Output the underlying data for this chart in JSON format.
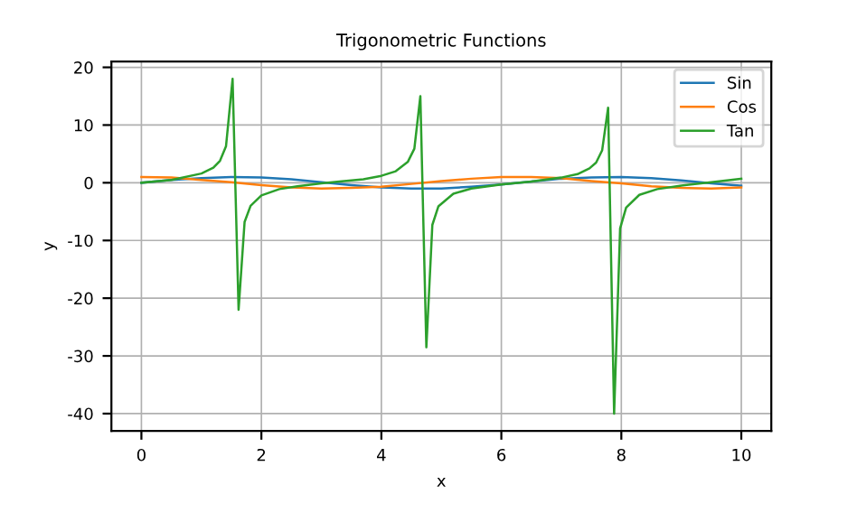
{
  "chart_data": {
    "type": "line",
    "title": "Trigonometric Functions",
    "xlabel": "x",
    "ylabel": "y",
    "series": [
      {
        "name": "Sin",
        "color": "#1f77b4",
        "x": [
          0,
          0.5,
          1,
          1.5,
          2,
          2.5,
          3,
          3.5,
          4,
          4.5,
          5,
          5.5,
          6,
          6.5,
          7,
          7.5,
          8,
          8.5,
          9,
          9.5,
          10
        ],
        "values": [
          0,
          0.5,
          0.8,
          1.0,
          0.9,
          0.6,
          0.1,
          -0.4,
          -0.8,
          -1.0,
          -1.0,
          -0.7,
          -0.3,
          0.2,
          0.7,
          0.9,
          1.0,
          0.8,
          0.4,
          -0.1,
          -0.5
        ]
      },
      {
        "name": "Cos",
        "color": "#ff7f0e",
        "x": [
          0,
          0.5,
          1,
          1.5,
          2,
          2.5,
          3,
          3.5,
          4,
          4.5,
          5,
          5.5,
          6,
          6.5,
          7,
          7.5,
          8,
          8.5,
          9,
          9.5,
          10
        ],
        "values": [
          1,
          0.9,
          0.5,
          0.1,
          -0.4,
          -0.8,
          -1.0,
          -0.9,
          -0.7,
          -0.2,
          0.3,
          0.7,
          1.0,
          1.0,
          0.8,
          0.3,
          -0.1,
          -0.6,
          -0.9,
          -1.0,
          -0.8
        ]
      },
      {
        "name": "Tan",
        "color": "#2ca02c",
        "x": [
          0,
          0.5,
          1,
          1.2,
          1.31,
          1.41,
          1.52,
          1.62,
          1.72,
          1.82,
          2,
          2.3,
          2.6,
          3,
          3.3,
          3.7,
          4,
          4.24,
          4.44,
          4.55,
          4.65,
          4.75,
          4.85,
          4.95,
          5.2,
          5.5,
          6,
          6.5,
          7,
          7.27,
          7.47,
          7.58,
          7.68,
          7.78,
          7.88,
          7.98,
          8.08,
          8.3,
          8.6,
          9,
          9.5,
          10
        ],
        "values": [
          0,
          0.5,
          1.6,
          2.6,
          3.8,
          6.3,
          18,
          -22,
          -6.8,
          -4.0,
          -2.2,
          -1.1,
          -0.6,
          -0.1,
          0.2,
          0.6,
          1.2,
          2.0,
          3.6,
          5.9,
          15,
          -28.5,
          -7.3,
          -4.1,
          -1.9,
          -1.0,
          -0.3,
          0.2,
          0.9,
          1.5,
          2.5,
          3.5,
          5.6,
          13,
          -40,
          -7.9,
          -4.3,
          -2.1,
          -1.1,
          -0.5,
          0.1,
          0.7
        ]
      }
    ],
    "xlim": [
      -0.5,
      10.5
    ],
    "ylim": [
      -43,
      21
    ],
    "xticks": [
      0,
      2,
      4,
      6,
      8,
      10
    ],
    "yticks": [
      -40,
      -30,
      -20,
      -10,
      0,
      10,
      20
    ],
    "grid": true,
    "legend": "top right"
  }
}
